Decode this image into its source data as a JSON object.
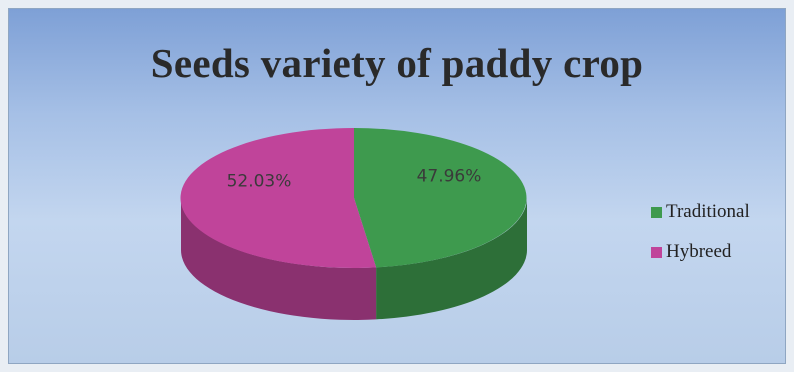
{
  "chart_data": {
    "type": "pie",
    "title": "Seeds variety of paddy crop",
    "slices": [
      {
        "label": "Traditional",
        "value": 47.96,
        "display": "47.96%",
        "color": "#3e9a4e"
      },
      {
        "label": "Hybreed",
        "value": 52.03,
        "display": "52.03%",
        "color": "#c0449a"
      }
    ],
    "legend_position": "right",
    "style": "3d"
  }
}
